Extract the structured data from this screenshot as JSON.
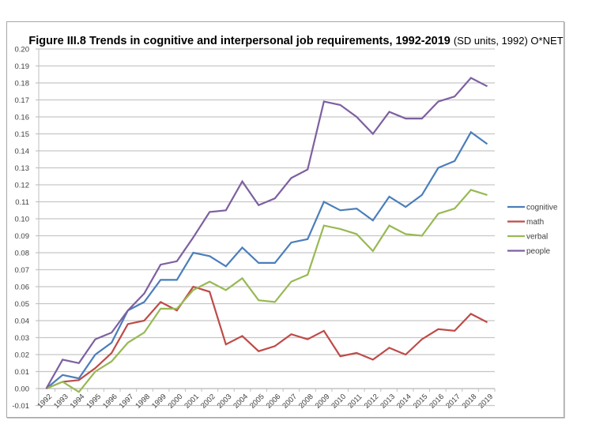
{
  "chart_data": {
    "type": "line",
    "title": "Figure III.8  Trends in cognitive and interpersonal job requirements, 1992-2019",
    "title_suffix": "(SD units, 1992)  O*NET",
    "xlabel": "",
    "ylabel": "",
    "ylim": [
      -0.01,
      0.2
    ],
    "ytick_step": 0.01,
    "yticks": [
      "0.20",
      "0.19",
      "0.18",
      "0.17",
      "0.16",
      "0.15",
      "0.14",
      "0.13",
      "0.12",
      "0.11",
      "0.10",
      "0.09",
      "0.08",
      "0.07",
      "0.06",
      "0.05",
      "0.04",
      "0.03",
      "0.02",
      "0.01",
      "0.00",
      "-0.01"
    ],
    "grid": true,
    "legend_position": "right",
    "categories": [
      "1992",
      "1993",
      "1994",
      "1995",
      "1996",
      "1997",
      "1998",
      "1999",
      "2000",
      "2001",
      "2002",
      "2003",
      "2004",
      "2005",
      "2006",
      "2007",
      "2008",
      "2009",
      "2010",
      "2011",
      "2012",
      "2013",
      "2014",
      "2015",
      "2016",
      "2017",
      "2018",
      "2019"
    ],
    "series": [
      {
        "name": "cognitive",
        "color": "#4a7ebb",
        "values": [
          0.0,
          0.008,
          0.006,
          0.02,
          0.027,
          0.046,
          0.051,
          0.064,
          0.064,
          0.08,
          0.078,
          0.072,
          0.083,
          0.074,
          0.074,
          0.086,
          0.088,
          0.11,
          0.105,
          0.106,
          0.099,
          0.113,
          0.107,
          0.114,
          0.13,
          0.134,
          0.151,
          0.144
        ]
      },
      {
        "name": "math",
        "color": "#be4b48",
        "values": [
          0.0,
          0.004,
          0.005,
          0.012,
          0.021,
          0.038,
          0.04,
          0.051,
          0.046,
          0.06,
          0.057,
          0.026,
          0.031,
          0.022,
          0.025,
          0.032,
          0.029,
          0.034,
          0.019,
          0.021,
          0.017,
          0.024,
          0.02,
          0.029,
          0.035,
          0.034,
          0.044,
          0.039
        ]
      },
      {
        "name": "verbal",
        "color": "#98b954",
        "values": [
          0.0,
          0.004,
          -0.002,
          0.01,
          0.016,
          0.027,
          0.033,
          0.047,
          0.047,
          0.058,
          0.063,
          0.058,
          0.065,
          0.052,
          0.051,
          0.063,
          0.067,
          0.096,
          0.094,
          0.091,
          0.081,
          0.096,
          0.091,
          0.09,
          0.103,
          0.106,
          0.117,
          0.114
        ]
      },
      {
        "name": "people",
        "color": "#7d60a0",
        "values": [
          0.0,
          0.017,
          0.015,
          0.029,
          0.033,
          0.046,
          0.056,
          0.073,
          0.075,
          0.089,
          0.104,
          0.105,
          0.122,
          0.108,
          0.112,
          0.124,
          0.129,
          0.169,
          0.167,
          0.16,
          0.15,
          0.163,
          0.159,
          0.159,
          0.169,
          0.172,
          0.183,
          0.178
        ]
      }
    ]
  }
}
